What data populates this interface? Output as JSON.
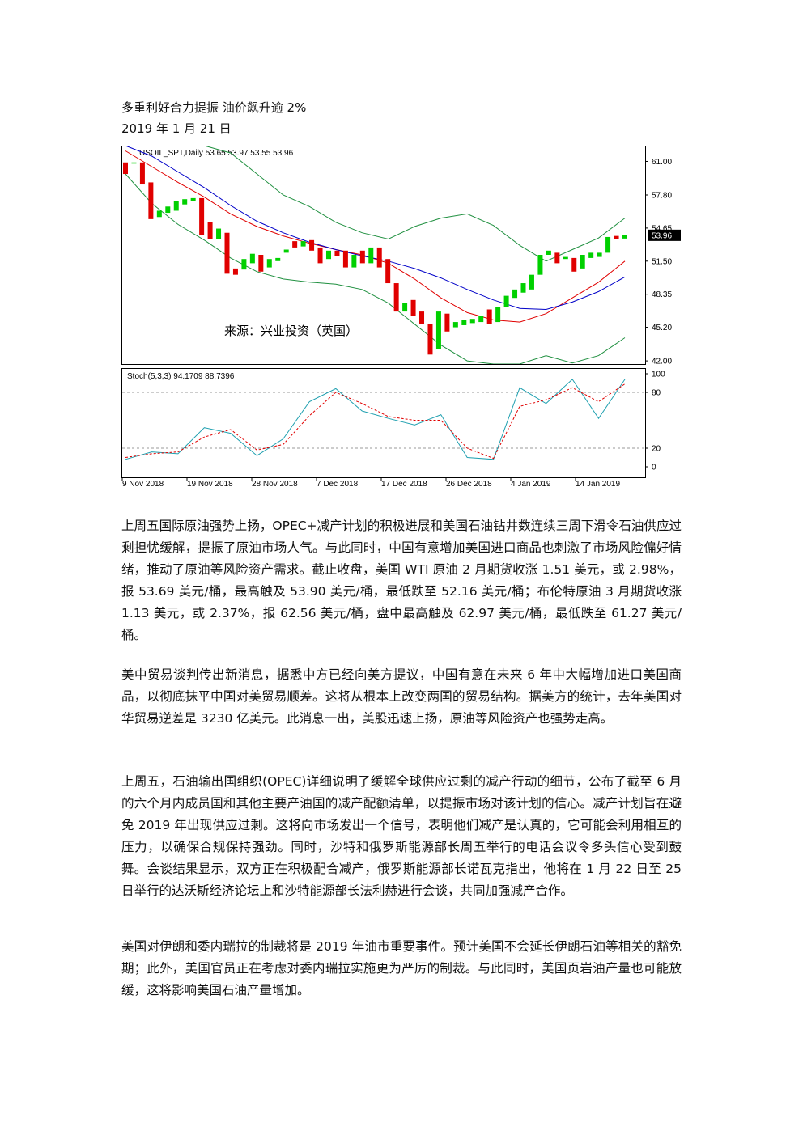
{
  "header": {
    "title": "多重利好合力提振 油价飙升逾 2%",
    "date": "2019 年 1 月 21 日"
  },
  "chart_data": {
    "type": "candlestick",
    "header_text": "USOIL_SPT,Daily  53.65 53.97 53.55 53.96",
    "source": "来源：兴业投资（英国）",
    "up_color": "#00d000",
    "down_color": "#e00000",
    "open": [
      60.9,
      60.8,
      60.9,
      59.0,
      55.7,
      56.1,
      56.3,
      56.9,
      57.2,
      57.5,
      55.2,
      53.6,
      54.2,
      50.8,
      50.7,
      51.3,
      52.1,
      50.9,
      51.5,
      52.3,
      53.4,
      52.9,
      53.5,
      52.8,
      51.7,
      52.5,
      52.5,
      50.9,
      52.5,
      51.3,
      52.8,
      51.7,
      49.4,
      46.7,
      47.8,
      46.7,
      45.5,
      43.1,
      46.5,
      45.2,
      45.4,
      45.6,
      45.7,
      46.9,
      45.7,
      47.1,
      48.0,
      48.5,
      48.8,
      50.2,
      52.1,
      52.3,
      51.7,
      51.8,
      50.8,
      51.8,
      51.9,
      52.3,
      53.9,
      53.65
    ],
    "close": [
      59.8,
      60.9,
      58.8,
      55.5,
      56.3,
      56.7,
      57.2,
      57.4,
      57.5,
      54.0,
      53.6,
      54.6,
      50.3,
      50.2,
      51.7,
      52.2,
      50.5,
      51.7,
      51.8,
      52.6,
      52.8,
      53.4,
      52.5,
      51.3,
      52.5,
      52.0,
      50.9,
      52.1,
      51.3,
      52.8,
      50.9,
      49.4,
      46.7,
      47.5,
      46.3,
      45.5,
      42.6,
      46.7,
      44.8,
      45.7,
      45.9,
      46.0,
      46.3,
      45.5,
      47.1,
      48.2,
      48.8,
      49.4,
      50.2,
      52.1,
      52.5,
      51.3,
      51.9,
      50.5,
      52.1,
      52.3,
      52.3,
      53.8,
      53.6,
      53.96
    ],
    "overlays": [
      {
        "color": "#e00000",
        "values": [
          62.0,
          60.5,
          59.0,
          57.6,
          56.0,
          54.8,
          53.9,
          53.2,
          52.6,
          52.1,
          51.3,
          49.8,
          48.0,
          46.6,
          45.9,
          45.7,
          46.5,
          48.0,
          49.5,
          51.5
        ]
      },
      {
        "color": "#0000c8",
        "values": [
          62.5,
          61.5,
          60.0,
          58.5,
          56.8,
          55.3,
          54.2,
          53.3,
          52.6,
          52.0,
          51.5,
          50.8,
          49.9,
          48.8,
          47.8,
          47.0,
          46.9,
          47.6,
          48.6,
          50.0
        ]
      },
      {
        "color": "#209040",
        "values": [
          62.5,
          62.5,
          62.5,
          62.5,
          61.8,
          59.8,
          57.8,
          56.7,
          55.2,
          54.2,
          53.6,
          54.8,
          55.6,
          56.0,
          54.9,
          53.0,
          51.5,
          52.6,
          53.7,
          55.6
        ]
      },
      {
        "color": "#209040",
        "values": [
          59.8,
          57.0,
          55.0,
          53.5,
          51.8,
          50.5,
          49.8,
          49.5,
          49.3,
          48.8,
          47.5,
          45.5,
          43.5,
          42.0,
          41.7,
          41.7,
          42.5,
          41.8,
          42.5,
          44.2
        ]
      }
    ],
    "ylim": [
      41.7,
      62.5
    ],
    "yticks": [
      {
        "value": 61.0,
        "label": "61.00"
      },
      {
        "value": 57.8,
        "label": "57.80"
      },
      {
        "value": 54.65,
        "label": "54.65"
      },
      {
        "value": 51.5,
        "label": "51.50"
      },
      {
        "value": 48.35,
        "label": "48.35"
      },
      {
        "value": 45.2,
        "label": "45.20"
      },
      {
        "value": 42.0,
        "label": "42.00"
      }
    ],
    "last_price": 53.96,
    "stoch_label": "Stoch(5,3,3) 94.1709 88.7396",
    "stoch_k": {
      "color": "#20a0b0",
      "values": [
        8,
        16,
        14,
        42,
        36,
        12,
        30,
        70,
        84,
        60,
        52,
        45,
        56,
        10,
        8,
        85,
        68,
        94,
        52,
        94
      ]
    },
    "stoch_d": {
      "color": "#e00000",
      "values": [
        10,
        14,
        16,
        32,
        40,
        18,
        24,
        55,
        80,
        68,
        54,
        50,
        50,
        20,
        9,
        65,
        72,
        85,
        70,
        89
      ]
    },
    "stoch_ylim": [
      0,
      100
    ],
    "stoch_yticks": [
      100,
      80,
      20,
      0
    ],
    "stoch_levels": [
      80,
      20
    ],
    "x_labels": [
      "9 Nov 2018",
      "19 Nov 2018",
      "28 Nov 2018",
      "7 Dec 2018",
      "17 Dec 2018",
      "26 Dec 2018",
      "4 Jan 2019",
      "14 Jan 2019"
    ]
  },
  "paragraphs": [
    "上周五国际原油强势上扬，OPEC+减产计划的积极进展和美国石油钻井数连续三周下滑令石油供应过剩担忧缓解，提振了原油市场人气。与此同时，中国有意增加美国进口商品也刺激了市场风险偏好情绪，推动了原油等风险资产需求。截止收盘，美国 WTI 原油 2 月期货收涨 1.51 美元，或 2.98%，报 53.69 美元/桶，最高触及 53.90 美元/桶，最低跌至 52.16 美元/桶；布伦特原油 3 月期货收涨 1.13 美元，或 2.37%，报 62.56 美元/桶，盘中最高触及 62.97 美元/桶，最低跌至 61.27 美元/桶。",
    "美中贸易谈判传出新消息，据悉中方已经向美方提议，中国有意在未来 6 年中大幅增加进口美国商品，以彻底抹平中国对美贸易顺差。这将从根本上改变两国的贸易结构。据美方的统计，去年美国对华贸易逆差是 3230 亿美元。此消息一出，美股迅速上扬，原油等风险资产也强势走高。",
    "上周五，石油输出国组织(OPEC)详细说明了缓解全球供应过剩的减产行动的细节，公布了截至 6 月的六个月内成员国和其他主要产油国的减产配额清单，以提振市场对该计划的信心。减产计划旨在避免 2019 年出现供应过剩。这将向市场发出一个信号，表明他们减产是认真的，它可能会利用相互的压力，以确保合规保持强劲。同时，沙特和俄罗斯能源部长周五举行的电话会议令多头信心受到鼓舞。会谈结果显示，双方正在积极配合减产，俄罗斯能源部长诺瓦克指出，他将在 1 月 22 日至 25 日举行的达沃斯经济论坛上和沙特能源部长法利赫进行会谈，共同加强减产合作。",
    "美国对伊朗和委内瑞拉的制裁将是 2019 年油市重要事件。预计美国不会延长伊朗石油等相关的豁免期；此外，美国官员正在考虑对委内瑞拉实施更为严厉的制裁。与此同时，美国页岩油产量也可能放缓，这将影响美国石油产量增加。"
  ]
}
